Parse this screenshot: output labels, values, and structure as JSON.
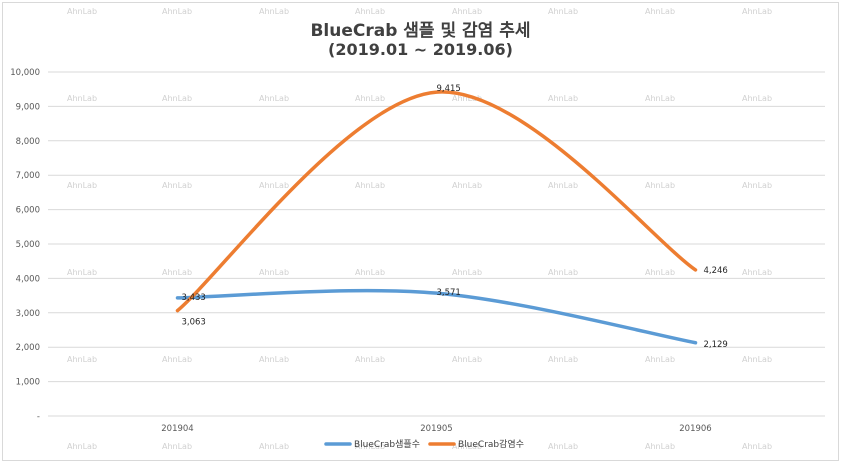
{
  "chart_data": {
    "type": "line",
    "title": "BlueCrab 샘플 및 감염 추세",
    "subtitle": "(2019.01 ~ 2019.06)",
    "categories": [
      "201904",
      "201905",
      "201906"
    ],
    "series": [
      {
        "name": "BlueCrab샘플수",
        "values": [
          3433,
          3571,
          2129
        ],
        "labels": [
          "3,433",
          "3,571",
          "2,129"
        ],
        "color": "#5b9bd5"
      },
      {
        "name": "BlueCrab감염수",
        "values": [
          3063,
          9415,
          4246
        ],
        "labels": [
          "3,063",
          "9,415",
          "4,246"
        ],
        "color": "#ed7d31"
      }
    ],
    "ylim": [
      0,
      10000
    ],
    "yticks": [
      "-",
      "1,000",
      "2,000",
      "3,000",
      "4,000",
      "5,000",
      "6,000",
      "7,000",
      "8,000",
      "9,000",
      "10,000"
    ],
    "smooth": true,
    "grid": true,
    "legend_position": "bottom",
    "watermark": "AhnLab"
  }
}
